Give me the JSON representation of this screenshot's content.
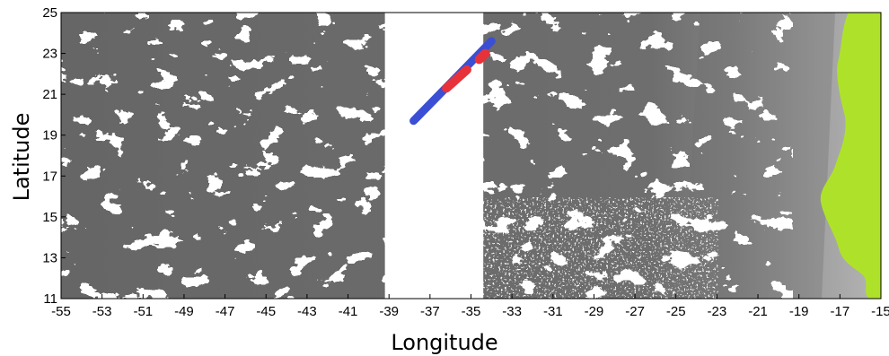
{
  "map": {
    "xlabel": "Longitude",
    "ylabel": "Latitude",
    "xlim": [
      -55,
      -15
    ],
    "ylim": [
      11,
      25
    ],
    "x_ticks": [
      -55,
      -53,
      -51,
      -49,
      -47,
      -45,
      -43,
      -41,
      -39,
      -37,
      -35,
      -33,
      -31,
      -29,
      -27,
      -25,
      -23,
      -21,
      -19,
      -17,
      -15
    ],
    "y_ticks": [
      11,
      13,
      15,
      17,
      19,
      21,
      23,
      25
    ],
    "colors": {
      "ocean_dark": "#5a5a5a",
      "ocean_mid": "#7a7a7a",
      "ocean_light": "#a5a5a5",
      "cloud_or_nodata": "#ffffff",
      "land": "#aee22a",
      "track": "#3b4fd4",
      "track_highlight": "#e8323a"
    },
    "swath_gap_longitude": {
      "top": [
        -39.2,
        -34.4
      ],
      "bottom": [
        -39.2,
        -34.4
      ]
    },
    "track": {
      "start": [
        -37.8,
        19.7
      ],
      "end": [
        -34,
        23.6
      ]
    },
    "track_highlight_segments": [
      {
        "start": [
          -36.2,
          21.3
        ],
        "end": [
          -35.2,
          22.2
        ]
      },
      {
        "start": [
          -34.6,
          22.7
        ],
        "end": [
          -34.3,
          23.0
        ]
      }
    ]
  }
}
